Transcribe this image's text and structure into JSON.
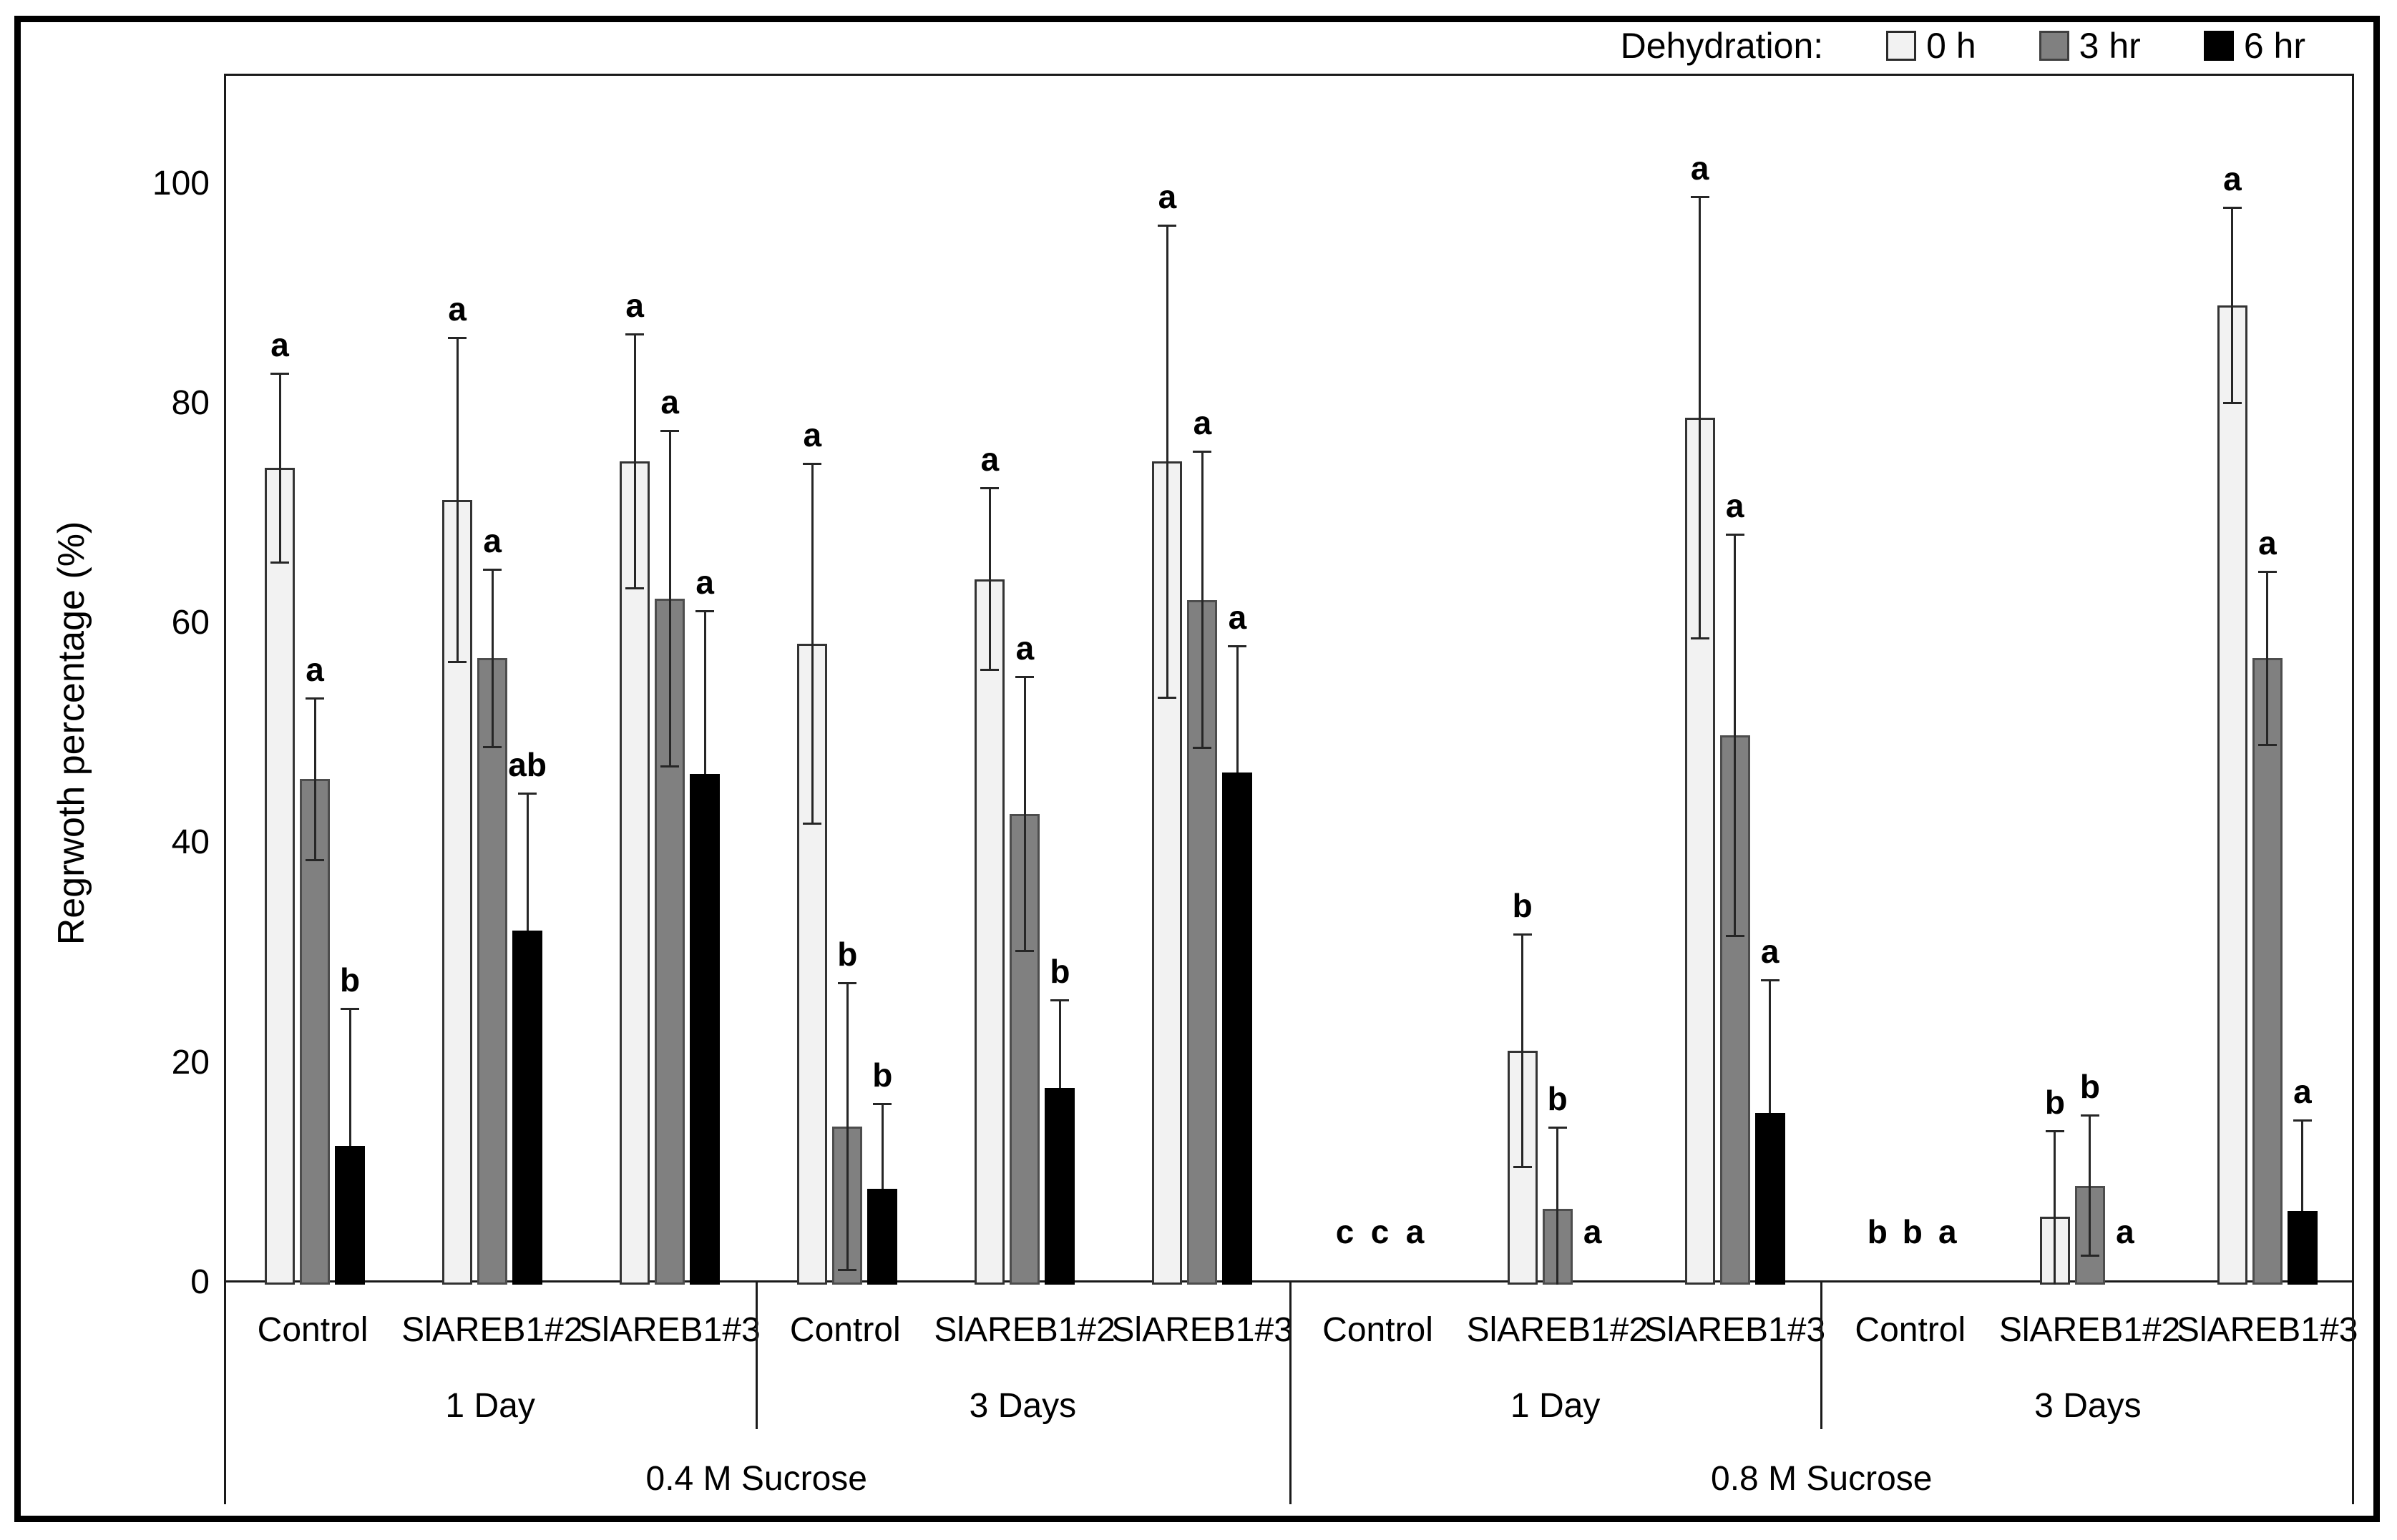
{
  "chart_data": {
    "type": "bar",
    "title": "",
    "ylabel": "Regrwoth percentage (%)",
    "ylim": [
      0,
      110
    ],
    "yticks": [
      0,
      20,
      40,
      60,
      80,
      100
    ],
    "grid": false,
    "legend": {
      "title": "Dehydration:",
      "position": "top-right",
      "entries": [
        {
          "label": "0 h",
          "color": "#f2f2f2",
          "border": "#2b2b2b"
        },
        {
          "label": "3 hr",
          "color": "#808080",
          "border": "#404040"
        },
        {
          "label": "6 hr",
          "color": "#000000",
          "border": "#000000"
        }
      ]
    },
    "series_names": [
      "0 h",
      "3 hr",
      "6 hr"
    ],
    "sections": [
      {
        "label": "0.4 M Sucrose",
        "days": [
          {
            "label": "1 Day",
            "groups": [
              {
                "label": "Control",
                "bars": [
                  {
                    "series": "0 h",
                    "value": 74.3,
                    "err": 8.6,
                    "letter": "a"
                  },
                  {
                    "series": "3 hr",
                    "value": 46.0,
                    "err": 7.4,
                    "letter": "a"
                  },
                  {
                    "series": "6 hr",
                    "value": 12.6,
                    "err": 12.5,
                    "letter": "b"
                  }
                ]
              },
              {
                "label": "SlAREB1#2",
                "bars": [
                  {
                    "series": "0 h",
                    "value": 71.4,
                    "err": 14.8,
                    "letter": "a"
                  },
                  {
                    "series": "3 hr",
                    "value": 57.0,
                    "err": 8.1,
                    "letter": "a"
                  },
                  {
                    "series": "6 hr",
                    "value": 32.2,
                    "err": 12.5,
                    "letter": "ab"
                  }
                ]
              },
              {
                "label": "SlAREB1#3",
                "bars": [
                  {
                    "series": "0 h",
                    "value": 74.9,
                    "err": 11.6,
                    "letter": "a"
                  },
                  {
                    "series": "3 hr",
                    "value": 62.4,
                    "err": 15.3,
                    "letter": "a"
                  },
                  {
                    "series": "6 hr",
                    "value": 46.5,
                    "err": 14.8,
                    "letter": "a"
                  }
                ]
              }
            ]
          },
          {
            "label": "3 Days",
            "groups": [
              {
                "label": "Control",
                "bars": [
                  {
                    "series": "0 h",
                    "value": 58.3,
                    "err": 16.4,
                    "letter": "a"
                  },
                  {
                    "series": "3 hr",
                    "value": 14.4,
                    "err": 13.1,
                    "letter": "b"
                  },
                  {
                    "series": "6 hr",
                    "value": 8.7,
                    "err": 7.8,
                    "letter": "b"
                  }
                ]
              },
              {
                "label": "SlAREB1#2",
                "bars": [
                  {
                    "series": "0 h",
                    "value": 64.2,
                    "err": 8.3,
                    "letter": "a"
                  },
                  {
                    "series": "3 hr",
                    "value": 42.8,
                    "err": 12.5,
                    "letter": "a"
                  },
                  {
                    "series": "6 hr",
                    "value": 17.9,
                    "err": 8.0,
                    "letter": "b"
                  }
                ]
              },
              {
                "label": "SlAREB1#3",
                "bars": [
                  {
                    "series": "0 h",
                    "value": 74.9,
                    "err": 21.5,
                    "letter": "a"
                  },
                  {
                    "series": "3 hr",
                    "value": 62.3,
                    "err": 13.5,
                    "letter": "a"
                  },
                  {
                    "series": "6 hr",
                    "value": 46.6,
                    "err": 11.5,
                    "letter": "a"
                  }
                ]
              }
            ]
          }
        ]
      },
      {
        "label": "0.8 M Sucrose",
        "days": [
          {
            "label": "1 Day",
            "groups": [
              {
                "label": "Control",
                "bars": [
                  {
                    "series": "0 h",
                    "value": 0,
                    "err": 0,
                    "letter": "c"
                  },
                  {
                    "series": "3 hr",
                    "value": 0,
                    "err": 0,
                    "letter": "c"
                  },
                  {
                    "series": "6 hr",
                    "value": 0,
                    "err": 0,
                    "letter": "a"
                  }
                ]
              },
              {
                "label": "SlAREB1#2",
                "bars": [
                  {
                    "series": "0 h",
                    "value": 21.3,
                    "err": 10.6,
                    "letter": "b"
                  },
                  {
                    "series": "3 hr",
                    "value": 6.9,
                    "err": 7.4,
                    "letter": "b"
                  },
                  {
                    "series": "6 hr",
                    "value": 0,
                    "err": 0,
                    "letter": "a"
                  }
                ]
              },
              {
                "label": "SlAREB1#3",
                "bars": [
                  {
                    "series": "0 h",
                    "value": 78.9,
                    "err": 20.1,
                    "letter": "a"
                  },
                  {
                    "series": "3 hr",
                    "value": 50.0,
                    "err": 18.3,
                    "letter": "a"
                  },
                  {
                    "series": "6 hr",
                    "value": 15.6,
                    "err": 12.1,
                    "letter": "a"
                  }
                ]
              }
            ]
          },
          {
            "label": "3 Days",
            "groups": [
              {
                "label": "Control",
                "bars": [
                  {
                    "series": "0 h",
                    "value": 0,
                    "err": 0,
                    "letter": "b"
                  },
                  {
                    "series": "3 hr",
                    "value": 0,
                    "err": 0,
                    "letter": "b"
                  },
                  {
                    "series": "6 hr",
                    "value": 0,
                    "err": 0,
                    "letter": "a"
                  }
                ]
              },
              {
                "label": "SlAREB1#2",
                "bars": [
                  {
                    "series": "0 h",
                    "value": 6.2,
                    "err": 7.8,
                    "letter": "b"
                  },
                  {
                    "series": "3 hr",
                    "value": 9.0,
                    "err": 6.4,
                    "letter": "b"
                  },
                  {
                    "series": "6 hr",
                    "value": 0,
                    "err": 0,
                    "letter": "a"
                  }
                ]
              },
              {
                "label": "SlAREB1#3",
                "bars": [
                  {
                    "series": "0 h",
                    "value": 89.1,
                    "err": 8.9,
                    "letter": "a"
                  },
                  {
                    "series": "3 hr",
                    "value": 57.0,
                    "err": 7.9,
                    "letter": "a"
                  },
                  {
                    "series": "6 hr",
                    "value": 6.7,
                    "err": 8.3,
                    "letter": "a"
                  }
                ]
              }
            ]
          }
        ]
      }
    ],
    "style_colors": {
      "bar_fills": [
        "#f2f2f2",
        "#808080",
        "#000000"
      ],
      "bar_borders": [
        "#333333",
        "#4d4d4d",
        "#000000"
      ],
      "error_bar": "#262626",
      "axis": "#1a1a1a"
    }
  }
}
